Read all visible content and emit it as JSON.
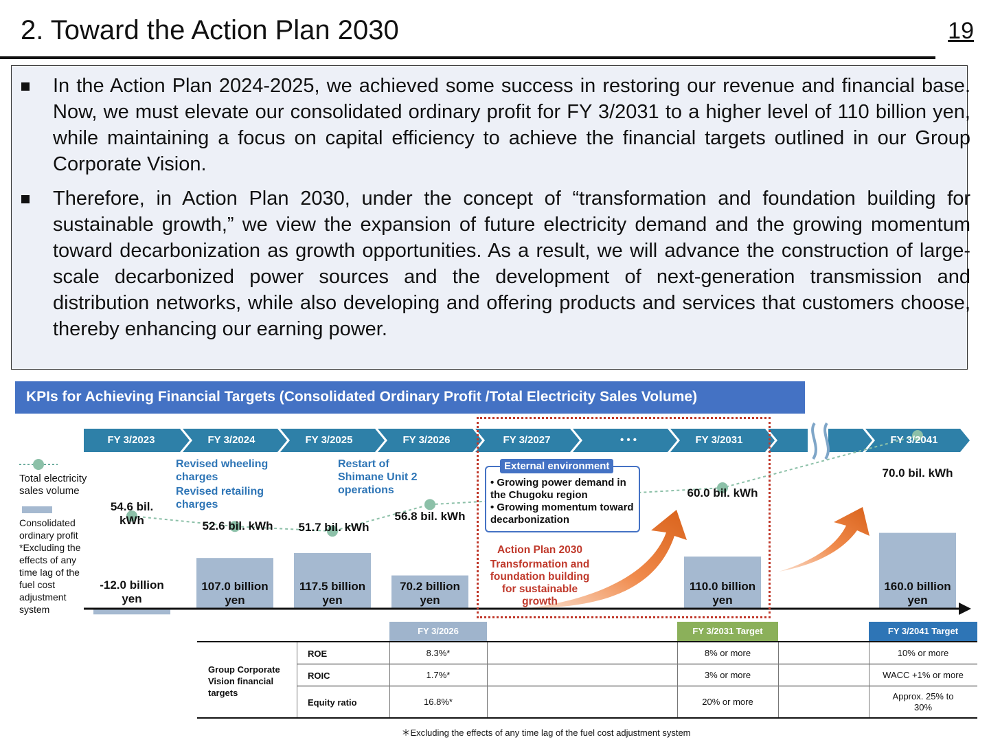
{
  "header": {
    "title": "2. Toward the Action Plan 2030",
    "page_number": "19"
  },
  "summary": {
    "bullets": [
      "In the Action Plan 2024-2025, we achieved some success in restoring our revenue and financial base. Now, we must elevate our consolidated ordinary profit for FY 3/2031 to a higher level of 110 billion yen, while maintaining a focus on capital efficiency to achieve the financial targets outlined in our Group Corporate Vision.",
      "Therefore, in Action Plan 2030, under the concept of “transformation and foundation building for sustainable growth,” we view the expansion of future electricity demand and the growing momentum toward decarbonization as growth opportunities. As a result, we will advance the construction of large-scale decarbonized power sources and the development of next-generation transmission and distribution networks, while also developing and offering products and services that customers choose, thereby enhancing our earning power."
    ]
  },
  "kpi": {
    "banner": "KPIs for Achieving Financial Targets (Consolidated Ordinary Profit /Total Electricity Sales Volume)",
    "timeline": [
      "FY 3/2023",
      "FY 3/2024",
      "FY 3/2025",
      "FY 3/2026",
      "FY 3/2027",
      "• • •",
      "FY 3/2031",
      "",
      "FY 3/2041"
    ],
    "legend": {
      "volume": "Total electricity sales volume",
      "profit": "Consolidated ordinary profit *Excluding the effects of any time lag of the fuel cost adjustment system"
    },
    "notes": {
      "wheeling": "Revised wheeling charges",
      "retailing": "Revised retailing charges",
      "shimane": "Restart of Shimane Unit 2 operations"
    },
    "external": {
      "title": "External environment",
      "items": [
        "Growing power demand in the Chugoku region",
        "Growing momentum toward decarbonization"
      ]
    },
    "action_plan": {
      "title": "Action Plan 2030",
      "subtitle": "Transformation and foundation building for sustainable growth"
    }
  },
  "chart_data": {
    "type": "bar",
    "categories": [
      "FY 3/2023",
      "FY 3/2024",
      "FY 3/2025",
      "FY 3/2026",
      "FY 3/2031",
      "FY 3/2041"
    ],
    "series": [
      {
        "name": "Consolidated ordinary profit",
        "values": [
          -12.0,
          107.0,
          117.5,
          70.2,
          110.0,
          160.0
        ],
        "labels": [
          "-12.0 billion yen",
          "107.0 billion yen",
          "117.5 billion yen",
          "70.2 billion yen",
          "110.0 billion yen",
          "160.0 billion yen"
        ]
      },
      {
        "name": "Total electricity sales volume",
        "values": [
          54.6,
          52.6,
          51.7,
          56.8,
          60.0,
          70.0
        ],
        "labels": [
          "54.6 bil. kWh",
          "52.6 bil. kWh",
          "51.7 bil. kWh",
          "56.8 bil. kWh",
          "60.0 bil. kWh",
          "70.0 bil. kWh"
        ]
      }
    ]
  },
  "targets_table": {
    "columns": [
      "FY 3/2026",
      "FY 3/2031 Target",
      "FY 3/2041 Target"
    ],
    "column_colors": [
      "#9fb4cc",
      "#8bb05a",
      "#2e75b6"
    ],
    "group_label": "Group Corporate Vision financial targets",
    "rows": [
      {
        "metric": "ROE",
        "values": [
          "8.3%*",
          "8% or more",
          "10% or more"
        ]
      },
      {
        "metric": "ROIC",
        "values": [
          "1.7%*",
          "3% or more",
          "WACC +1% or more"
        ]
      },
      {
        "metric": "Equity ratio",
        "values": [
          "16.8%*",
          "20% or more",
          "Approx. 25% to 30%"
        ]
      }
    ],
    "footnote": "＊Excluding the effects of any time lag of the fuel cost adjustment system"
  }
}
